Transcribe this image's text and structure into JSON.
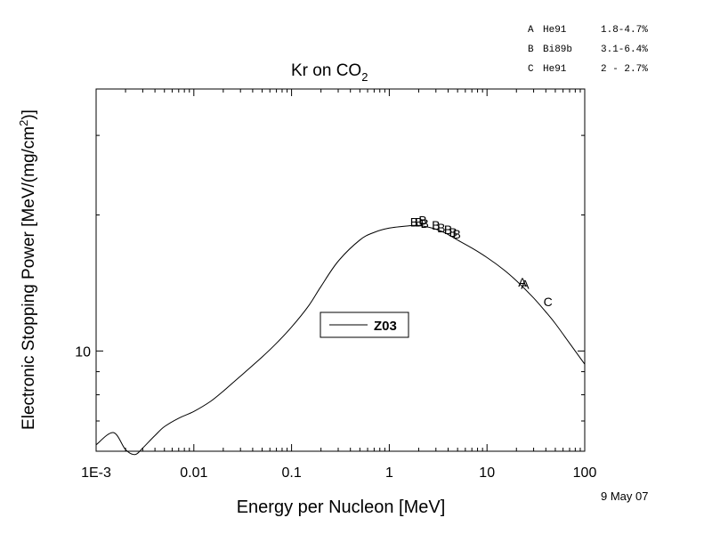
{
  "chart_data": {
    "type": "line",
    "title": "Kr on CO",
    "title_subscript": "2",
    "xlabel": "Energy per Nucleon [MeV]",
    "ylabel": "Electronic Stopping Power [MeV/(mg/cm",
    "ylabel_superscript": "2",
    "ylabel_suffix": ")]",
    "x_scale": "log",
    "y_scale": "log",
    "xlim": [
      0.001,
      100
    ],
    "ylim": [
      6.0,
      38.0
    ],
    "x_ticks": [
      {
        "value": 0.001,
        "label": "1E-3"
      },
      {
        "value": 0.01,
        "label": "0.01"
      },
      {
        "value": 0.1,
        "label": "0.1"
      },
      {
        "value": 1,
        "label": "1"
      },
      {
        "value": 10,
        "label": "10"
      },
      {
        "value": 100,
        "label": "100"
      }
    ],
    "y_ticks": [
      {
        "value": 10,
        "label": "10"
      }
    ],
    "grid": false,
    "legend": {
      "placement": "center",
      "entries": [
        "Z03"
      ]
    },
    "series": [
      {
        "name": "Z03",
        "style": "line",
        "points": [
          [
            0.001,
            6.2
          ],
          [
            0.0015,
            6.6
          ],
          [
            0.002,
            6.05
          ],
          [
            0.0025,
            5.9
          ],
          [
            0.003,
            6.1
          ],
          [
            0.004,
            6.5
          ],
          [
            0.005,
            6.8
          ],
          [
            0.007,
            7.1
          ],
          [
            0.01,
            7.35
          ],
          [
            0.015,
            7.75
          ],
          [
            0.02,
            8.15
          ],
          [
            0.03,
            8.8
          ],
          [
            0.05,
            9.7
          ],
          [
            0.07,
            10.4
          ],
          [
            0.1,
            11.3
          ],
          [
            0.15,
            12.6
          ],
          [
            0.2,
            13.9
          ],
          [
            0.3,
            15.8
          ],
          [
            0.5,
            17.6
          ],
          [
            0.7,
            18.3
          ],
          [
            1.0,
            18.7
          ],
          [
            1.5,
            18.9
          ],
          [
            2.0,
            18.95
          ],
          [
            3.0,
            18.6
          ],
          [
            4.0,
            18.1
          ],
          [
            5.0,
            17.6
          ],
          [
            7.0,
            16.9
          ],
          [
            10.0,
            16.1
          ],
          [
            15.0,
            15.1
          ],
          [
            20.0,
            14.3
          ],
          [
            30.0,
            13.1
          ],
          [
            40.0,
            12.2
          ],
          [
            50.0,
            11.5
          ],
          [
            70.0,
            10.4
          ],
          [
            100.0,
            9.35
          ]
        ]
      }
    ],
    "data_points": [
      {
        "marker": "B",
        "x": 1.8,
        "y": 19.3
      },
      {
        "marker": "B",
        "x": 2.0,
        "y": 19.3
      },
      {
        "marker": "B",
        "x": 2.2,
        "y": 19.45
      },
      {
        "marker": "B",
        "x": 2.3,
        "y": 19.15
      },
      {
        "marker": "B",
        "x": 3.0,
        "y": 19.0
      },
      {
        "marker": "B",
        "x": 3.4,
        "y": 18.75
      },
      {
        "marker": "B",
        "x": 4.0,
        "y": 18.55
      },
      {
        "marker": "B",
        "x": 4.5,
        "y": 18.3
      },
      {
        "marker": "B",
        "x": 4.9,
        "y": 18.15
      },
      {
        "marker": "A",
        "x": 23.0,
        "y": 14.2
      },
      {
        "marker": "A",
        "x": 24.5,
        "y": 14.05
      },
      {
        "marker": "C",
        "x": 42.0,
        "y": 12.85
      }
    ],
    "data_sources": [
      {
        "marker": "A",
        "ref": "He91",
        "range": "1.8-4.7%"
      },
      {
        "marker": "B",
        "ref": "Bi89b",
        "range": "3.1-6.4%"
      },
      {
        "marker": "C",
        "ref": "He91",
        "range": "2 - 2.7%"
      }
    ],
    "date": "9 May 07"
  }
}
